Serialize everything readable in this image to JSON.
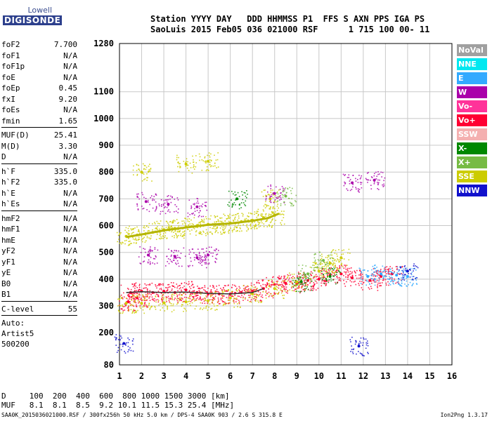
{
  "logo": {
    "line1": "Lowell",
    "line2": "DIGISONDE"
  },
  "header": {
    "line1": "Station YYYY DAY   DDD HHMMSS P1  FFS S AXN PPS IGA PS",
    "line2": "SaoLuis 2015 Feb05 036 021000 RSF      1 715 100 00- 11"
  },
  "params": {
    "group1": [
      {
        "k": "foF2",
        "v": "7.700"
      },
      {
        "k": "foF1",
        "v": "N/A"
      },
      {
        "k": "foF1p",
        "v": "N/A"
      },
      {
        "k": "foE",
        "v": "N/A"
      },
      {
        "k": "foEp",
        "v": "0.45"
      },
      {
        "k": "fxI",
        "v": "9.20"
      },
      {
        "k": "foEs",
        "v": "N/A"
      },
      {
        "k": "fmin",
        "v": "1.65"
      }
    ],
    "group2": [
      {
        "k": "MUF(D)",
        "v": "25.41"
      },
      {
        "k": "M(D)",
        "v": "3.30"
      },
      {
        "k": "D",
        "v": "N/A"
      }
    ],
    "group3": [
      {
        "k": "h`F",
        "v": "335.0"
      },
      {
        "k": "h`F2",
        "v": "335.0"
      },
      {
        "k": "h`E",
        "v": "N/A"
      },
      {
        "k": "h`Es",
        "v": "N/A"
      }
    ],
    "group4": [
      {
        "k": "hmF2",
        "v": "N/A"
      },
      {
        "k": "hmF1",
        "v": "N/A"
      },
      {
        "k": "hmE",
        "v": "N/A"
      },
      {
        "k": "yF2",
        "v": "N/A"
      },
      {
        "k": "yF1",
        "v": "N/A"
      },
      {
        "k": "yE",
        "v": "N/A"
      },
      {
        "k": "B0",
        "v": "N/A"
      },
      {
        "k": "B1",
        "v": "N/A"
      }
    ],
    "group5": [
      {
        "k": "C-level",
        "v": "55"
      }
    ],
    "auto": [
      "Auto:",
      "Artist5",
      "500200"
    ]
  },
  "legend": [
    {
      "label": "NoVal",
      "color": "#a0a0a0"
    },
    {
      "label": "NNE",
      "color": "#00e8f0"
    },
    {
      "label": "E",
      "color": "#33aaff"
    },
    {
      "label": "W",
      "color": "#aa00aa"
    },
    {
      "label": "Vo-",
      "color": "#ff3399"
    },
    {
      "label": "Vo+",
      "color": "#ff0033"
    },
    {
      "label": "SSW",
      "color": "#f4b0b0"
    },
    {
      "label": "X-",
      "color": "#008800"
    },
    {
      "label": "X+",
      "color": "#77bb44"
    },
    {
      "label": "SSE",
      "color": "#cccc00"
    },
    {
      "label": "NNW",
      "color": "#1111cc"
    }
  ],
  "chart_data": {
    "type": "scatter",
    "xlim": [
      1,
      16
    ],
    "ylim": [
      80,
      1280
    ],
    "x_ticks": [
      1,
      2,
      3,
      4,
      5,
      6,
      7,
      8,
      9,
      10,
      11,
      12,
      13,
      14,
      15,
      16
    ],
    "y_ticks": [
      80,
      200,
      300,
      400,
      500,
      600,
      700,
      800,
      900,
      1000,
      1100,
      1280
    ],
    "grid": true,
    "y_scale": "linear",
    "series": [
      {
        "name": "Vo+",
        "color": "#ff0033",
        "points": [
          [
            1.5,
            350
          ],
          [
            2.0,
            355
          ],
          [
            2.5,
            350
          ],
          [
            3.0,
            355
          ],
          [
            3.5,
            350
          ],
          [
            4.0,
            360
          ],
          [
            4.5,
            350
          ],
          [
            5.0,
            345
          ],
          [
            5.5,
            345
          ],
          [
            6.0,
            345
          ],
          [
            6.5,
            350
          ],
          [
            7.0,
            355
          ],
          [
            7.5,
            365
          ],
          [
            8.0,
            380
          ],
          [
            8.5,
            385
          ],
          [
            9.0,
            385
          ],
          [
            9.5,
            395
          ],
          [
            10.0,
            400
          ],
          [
            10.5,
            415
          ],
          [
            11.0,
            420
          ],
          [
            11.5,
            405
          ],
          [
            12.3,
            395
          ],
          [
            12.8,
            410
          ],
          [
            13.3,
            420
          ],
          [
            1.4,
            315
          ],
          [
            1.8,
            330
          ]
        ]
      },
      {
        "name": "SSE",
        "color": "#cccc00",
        "points": [
          [
            1.3,
            560
          ],
          [
            1.8,
            565
          ],
          [
            2.5,
            575
          ],
          [
            3.0,
            585
          ],
          [
            3.5,
            590
          ],
          [
            4.0,
            595
          ],
          [
            4.5,
            600
          ],
          [
            5.0,
            605
          ],
          [
            5.5,
            605
          ],
          [
            6.0,
            610
          ],
          [
            6.5,
            615
          ],
          [
            7.0,
            620
          ],
          [
            7.5,
            630
          ],
          [
            8.0,
            640
          ],
          [
            1.3,
            310
          ],
          [
            2.0,
            310
          ],
          [
            3.0,
            312
          ],
          [
            4.0,
            315
          ],
          [
            5.0,
            320
          ],
          [
            6.0,
            330
          ],
          [
            7.0,
            345
          ],
          [
            8.0,
            365
          ],
          [
            9.0,
            390
          ],
          [
            10.0,
            430
          ],
          [
            10.5,
            460
          ],
          [
            11.0,
            480
          ],
          [
            2.0,
            800
          ],
          [
            4.0,
            830
          ],
          [
            5.0,
            840
          ],
          [
            7.8,
            700
          ]
        ]
      },
      {
        "name": "W",
        "color": "#aa00aa",
        "points": [
          [
            2.2,
            690
          ],
          [
            3.2,
            680
          ],
          [
            4.5,
            670
          ],
          [
            2.3,
            490
          ],
          [
            3.5,
            485
          ],
          [
            4.5,
            480
          ],
          [
            5.0,
            490
          ],
          [
            8.0,
            720
          ],
          [
            11.5,
            760
          ],
          [
            12.5,
            770
          ]
        ]
      },
      {
        "name": "E",
        "color": "#33aaff",
        "points": [
          [
            12.2,
            410
          ],
          [
            12.8,
            420
          ],
          [
            13.5,
            415
          ],
          [
            14.0,
            410
          ]
        ]
      },
      {
        "name": "NNW",
        "color": "#1111cc",
        "points": [
          [
            1.2,
            160
          ],
          [
            11.8,
            150
          ],
          [
            14.0,
            430
          ]
        ]
      },
      {
        "name": "X-",
        "color": "#008800",
        "points": [
          [
            6.3,
            700
          ],
          [
            10.5,
            410
          ],
          [
            9.2,
            390
          ]
        ]
      },
      {
        "name": "X+",
        "color": "#77bb44",
        "points": [
          [
            8.5,
            710
          ],
          [
            10.2,
            470
          ],
          [
            9.5,
            420
          ]
        ]
      }
    ],
    "trace": {
      "name": "SSE",
      "color": "#b5b500",
      "points": [
        [
          1.3,
          557
        ],
        [
          2,
          567
        ],
        [
          3,
          582
        ],
        [
          4,
          593
        ],
        [
          5,
          603
        ],
        [
          6,
          608
        ],
        [
          7,
          618
        ],
        [
          7.7,
          628
        ],
        [
          8.2,
          645
        ]
      ]
    },
    "dark_trace": {
      "color": "#333333",
      "points": [
        [
          1.3,
          350
        ],
        [
          2,
          353
        ],
        [
          3,
          350
        ],
        [
          4,
          352
        ],
        [
          5,
          347
        ],
        [
          6,
          345
        ],
        [
          7,
          350
        ],
        [
          7.5,
          365
        ]
      ]
    }
  },
  "footer": {
    "line1": "D     100  200  400  600  800 1000 1500 3000 [km]",
    "line2": "MUF   8.1  8.1  8.5  9.2 10.1 11.5 15.3 25.4 [MHz]",
    "file": "SAA0K_2015036021000.RSF / 300fx256h 50 kHz 5.0 km / DPS-4 SAA0K 903 / 2.6 S 315.8 E",
    "version": "Ion2Png 1.3.17"
  }
}
